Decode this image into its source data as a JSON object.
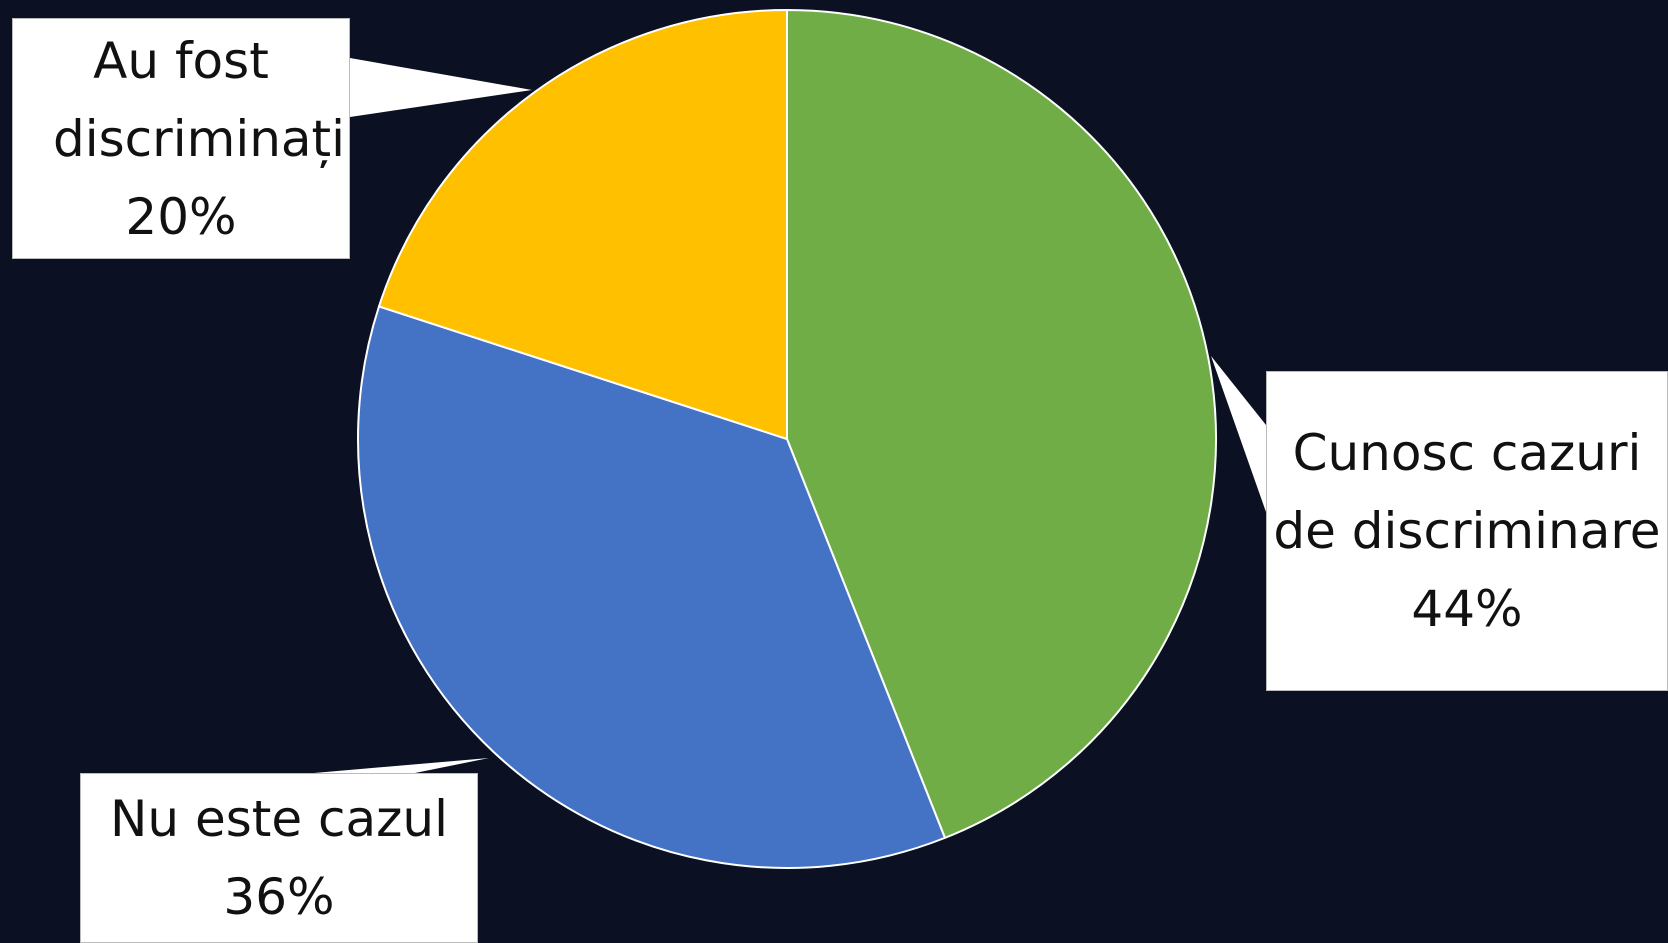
{
  "chart_data": {
    "type": "pie",
    "categories": [
      "Cunosc cazuri de discriminare",
      "Nu este cazul",
      "Au fost discriminați"
    ],
    "values": [
      44,
      36,
      20
    ],
    "value_labels": [
      "44%",
      "36%",
      "20%"
    ],
    "colors": [
      "#70ad47",
      "#4472c4",
      "#ffc000"
    ]
  }
}
